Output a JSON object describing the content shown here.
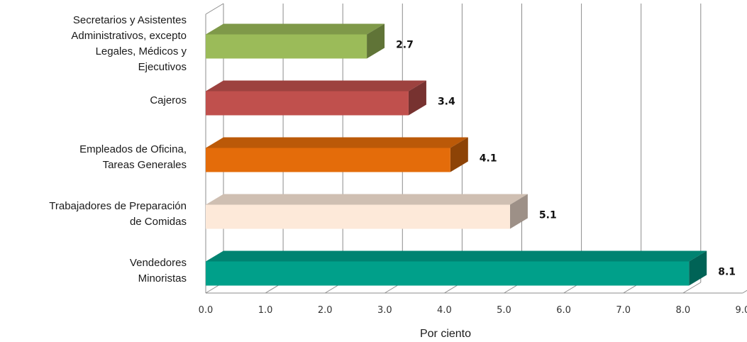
{
  "chart_data": {
    "type": "bar",
    "orientation": "horizontal",
    "style": "3d",
    "categories": [
      [
        "Secretarios y Asistentes",
        "Administrativos, excepto",
        "Legales, Médicos y",
        "Ejecutivos"
      ],
      [
        "Cajeros"
      ],
      [
        "Empleados de Oficina,",
        "Tareas Generales"
      ],
      [
        "Trabajadores de Preparación",
        "de Comidas"
      ],
      [
        "Vendedores",
        "Minoristas"
      ]
    ],
    "values": [
      2.7,
      3.4,
      4.1,
      5.1,
      8.1
    ],
    "value_labels": [
      "2.7",
      "3.4",
      "4.1",
      "5.1",
      "8.1"
    ],
    "colors": [
      "#9bbb59",
      "#c0504d",
      "#e46c0a",
      "#fde9d9",
      "#00a08a"
    ],
    "xlabel": "Por ciento",
    "xlim": [
      0,
      9
    ],
    "xticks": [
      "0.0",
      "1.0",
      "2.0",
      "3.0",
      "4.0",
      "5.0",
      "6.0",
      "7.0",
      "8.0",
      "9.0"
    ],
    "grid": true,
    "legend": "none"
  }
}
